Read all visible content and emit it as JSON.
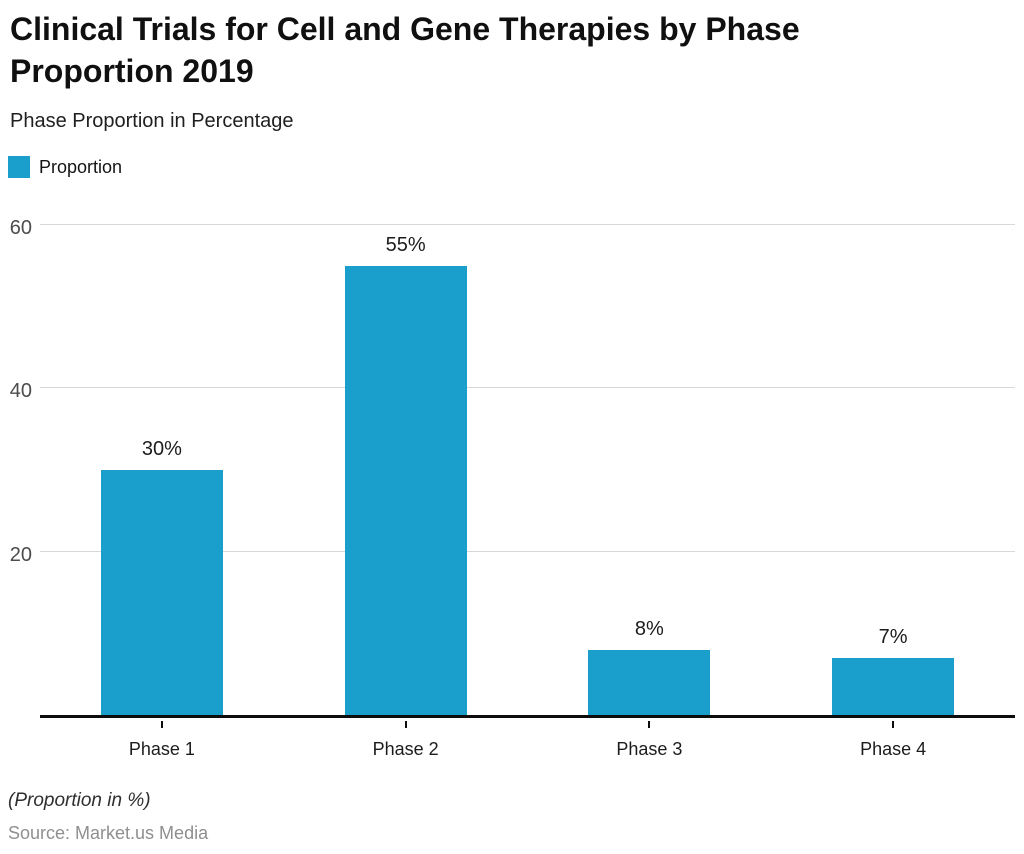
{
  "title": "Clinical Trials for Cell and Gene Therapies by Phase Proportion 2019",
  "subtitle": "Phase Proportion in Percentage",
  "legend": {
    "label": "Proportion",
    "swatch_color": "#1a9ecb"
  },
  "footer": {
    "note": "(Proportion in %)",
    "source": "Source: Market.us Media"
  },
  "chart_data": {
    "type": "bar",
    "title": "Clinical Trials for Cell and Gene Therapies by Phase Proportion 2019",
    "subtitle": "Phase Proportion in Percentage",
    "categories": [
      "Phase 1",
      "Phase 2",
      "Phase 3",
      "Phase 4"
    ],
    "series": [
      {
        "name": "Proportion",
        "values": [
          30,
          55,
          8,
          7
        ]
      }
    ],
    "data_labels": [
      "30%",
      "55%",
      "8%",
      "7%"
    ],
    "yticks": [
      20,
      40,
      60
    ],
    "ylim": [
      0,
      64
    ],
    "xlabel": "",
    "ylabel": "",
    "grid": true,
    "legend_position": "top-left",
    "colors": {
      "bar": "#1a9ecb",
      "gridline": "#d8d8d8",
      "axis_line": "#0d0d0d",
      "y_tick_label": "#4c4c4c",
      "x_tick_label": "#1c1c1c",
      "value_label": "#1c1c1c",
      "title": "#101010",
      "source_text": "#8f8f8f"
    }
  }
}
